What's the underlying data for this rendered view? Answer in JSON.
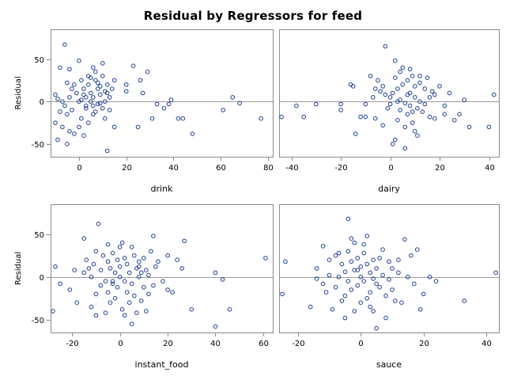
{
  "chart_data": {
    "type": "scatter",
    "title": "Residual by Regressors for feed",
    "ylabel": "Residual",
    "ylim": [
      -65,
      85
    ],
    "yticks": [
      -50,
      0,
      50
    ],
    "reference_line_y": 0,
    "marker": "open-circle",
    "marker_color": "#1f3f8f",
    "panels": [
      {
        "xlabel": "drink",
        "xlim": [
          -12,
          82
        ],
        "xticks": [
          0,
          20,
          40,
          60,
          80
        ],
        "points": [
          [
            -6,
            67
          ],
          [
            -8,
            40
          ],
          [
            -4,
            38
          ],
          [
            -5,
            22
          ],
          [
            -2,
            20
          ],
          [
            -10,
            8
          ],
          [
            -9,
            3
          ],
          [
            -7,
            0
          ],
          [
            -6,
            -5
          ],
          [
            -8,
            -12
          ],
          [
            -5,
            -15
          ],
          [
            -10,
            -25
          ],
          [
            -7,
            -30
          ],
          [
            -4,
            -35
          ],
          [
            -9,
            -45
          ],
          [
            -5,
            -50
          ],
          [
            -2,
            -38
          ],
          [
            -3,
            -10
          ],
          [
            -4,
            5
          ],
          [
            -1,
            10
          ],
          [
            0,
            48
          ],
          [
            1,
            25
          ],
          [
            2,
            15
          ],
          [
            0,
            0
          ],
          [
            1,
            -20
          ],
          [
            2,
            -40
          ],
          [
            3,
            5
          ],
          [
            3,
            -8
          ],
          [
            4,
            30
          ],
          [
            4,
            20
          ],
          [
            5,
            10
          ],
          [
            5,
            0
          ],
          [
            6,
            -5
          ],
          [
            6,
            -15
          ],
          [
            7,
            35
          ],
          [
            7,
            25
          ],
          [
            8,
            22
          ],
          [
            8,
            15
          ],
          [
            9,
            8
          ],
          [
            9,
            -2
          ],
          [
            10,
            45
          ],
          [
            10,
            30
          ],
          [
            10,
            -8
          ],
          [
            11,
            -20
          ],
          [
            11,
            0
          ],
          [
            12,
            20
          ],
          [
            12,
            10
          ],
          [
            12,
            -58
          ],
          [
            13,
            5
          ],
          [
            13,
            -10
          ],
          [
            14,
            15
          ],
          [
            15,
            25
          ],
          [
            15,
            -30
          ],
          [
            3,
            -5
          ],
          [
            2,
            8
          ],
          [
            6,
            5
          ],
          [
            8,
            -3
          ],
          [
            7,
            -12
          ],
          [
            5,
            28
          ],
          [
            4,
            -25
          ],
          [
            9,
            18
          ],
          [
            -3,
            15
          ],
          [
            0,
            -30
          ],
          [
            1,
            2
          ],
          [
            11,
            12
          ],
          [
            6,
            40
          ],
          [
            20,
            12
          ],
          [
            20,
            20
          ],
          [
            23,
            42
          ],
          [
            25,
            -30
          ],
          [
            26,
            25
          ],
          [
            27,
            10
          ],
          [
            29,
            35
          ],
          [
            31,
            -20
          ],
          [
            33,
            -3
          ],
          [
            36,
            -8
          ],
          [
            38,
            -3
          ],
          [
            39,
            2
          ],
          [
            42,
            -20
          ],
          [
            44,
            -20
          ],
          [
            48,
            -38
          ],
          [
            61,
            -10
          ],
          [
            65,
            5
          ],
          [
            68,
            -2
          ],
          [
            77,
            -20
          ]
        ]
      },
      {
        "xlabel": "dairy",
        "xlim": [
          -45,
          44
        ],
        "xticks": [
          -40,
          -20,
          0,
          20,
          40
        ],
        "points": [
          [
            -44,
            -18
          ],
          [
            -38,
            -5
          ],
          [
            -35,
            -18
          ],
          [
            -30,
            -3
          ],
          [
            -20,
            -3
          ],
          [
            -20,
            -10
          ],
          [
            -16,
            20
          ],
          [
            -15,
            18
          ],
          [
            -14,
            -38
          ],
          [
            -12,
            -18
          ],
          [
            -10,
            -18
          ],
          [
            -10,
            -3
          ],
          [
            -8,
            30
          ],
          [
            -7,
            5
          ],
          [
            -6,
            -20
          ],
          [
            -5,
            25
          ],
          [
            -4,
            12
          ],
          [
            -3,
            18
          ],
          [
            -2,
            8
          ],
          [
            -1,
            -8
          ],
          [
            0,
            -3
          ],
          [
            0,
            5
          ],
          [
            1,
            10
          ],
          [
            2,
            48
          ],
          [
            2,
            28
          ],
          [
            2,
            -45
          ],
          [
            3,
            15
          ],
          [
            3,
            -22
          ],
          [
            4,
            2
          ],
          [
            4,
            -10
          ],
          [
            5,
            40
          ],
          [
            5,
            20
          ],
          [
            6,
            -2
          ],
          [
            6,
            -30
          ],
          [
            7,
            25
          ],
          [
            7,
            -15
          ],
          [
            8,
            10
          ],
          [
            8,
            -5
          ],
          [
            9,
            30
          ],
          [
            9,
            -25
          ],
          [
            10,
            18
          ],
          [
            10,
            5
          ],
          [
            11,
            -8
          ],
          [
            11,
            -40
          ],
          [
            12,
            22
          ],
          [
            12,
            0
          ],
          [
            13,
            -12
          ],
          [
            14,
            15
          ],
          [
            15,
            28
          ],
          [
            16,
            -18
          ],
          [
            17,
            12
          ],
          [
            18,
            -20
          ],
          [
            20,
            18
          ],
          [
            22,
            -5
          ],
          [
            24,
            10
          ],
          [
            26,
            -22
          ],
          [
            28,
            -15
          ],
          [
            30,
            2
          ],
          [
            32,
            -30
          ],
          [
            -2,
            65
          ],
          [
            1,
            -50
          ],
          [
            6,
            -55
          ],
          [
            4,
            35
          ],
          [
            -6,
            15
          ],
          [
            8,
            38
          ],
          [
            10,
            -35
          ],
          [
            3,
            0
          ],
          [
            7,
            8
          ],
          [
            9,
            -12
          ],
          [
            -3,
            -28
          ],
          [
            14,
            -3
          ],
          [
            12,
            30
          ],
          [
            16,
            5
          ],
          [
            18,
            8
          ],
          [
            22,
            -15
          ],
          [
            40,
            -30
          ],
          [
            42,
            8
          ]
        ]
      },
      {
        "xlabel": "instant_food",
        "xlim": [
          -29,
          64
        ],
        "xticks": [
          -20,
          0,
          20,
          40,
          60
        ],
        "points": [
          [
            -28,
            -40
          ],
          [
            -27,
            12
          ],
          [
            -25,
            -8
          ],
          [
            -21,
            -15
          ],
          [
            -19,
            8
          ],
          [
            -18,
            -30
          ],
          [
            -15,
            5
          ],
          [
            -14,
            20
          ],
          [
            -13,
            10
          ],
          [
            -12,
            0
          ],
          [
            -12,
            -35
          ],
          [
            -11,
            15
          ],
          [
            -10,
            30
          ],
          [
            -10,
            -20
          ],
          [
            -9,
            62
          ],
          [
            -8,
            8
          ],
          [
            -8,
            -10
          ],
          [
            -7,
            25
          ],
          [
            -6,
            -5
          ],
          [
            -6,
            -42
          ],
          [
            -5,
            18
          ],
          [
            -5,
            -18
          ],
          [
            -4,
            10
          ],
          [
            -4,
            -30
          ],
          [
            -3,
            28
          ],
          [
            -3,
            -8
          ],
          [
            -2,
            5
          ],
          [
            -2,
            -25
          ],
          [
            -1,
            20
          ],
          [
            -1,
            -12
          ],
          [
            0,
            12
          ],
          [
            0,
            0
          ],
          [
            1,
            40
          ],
          [
            1,
            -38
          ],
          [
            2,
            22
          ],
          [
            2,
            -5
          ],
          [
            3,
            15
          ],
          [
            3,
            -18
          ],
          [
            4,
            5
          ],
          [
            4,
            -30
          ],
          [
            5,
            35
          ],
          [
            5,
            -8
          ],
          [
            6,
            25
          ],
          [
            6,
            -22
          ],
          [
            7,
            10
          ],
          [
            7,
            -42
          ],
          [
            8,
            18
          ],
          [
            8,
            0
          ],
          [
            9,
            5
          ],
          [
            9,
            -28
          ],
          [
            10,
            22
          ],
          [
            10,
            -12
          ],
          [
            11,
            8
          ],
          [
            11,
            -40
          ],
          [
            12,
            2
          ],
          [
            13,
            30
          ],
          [
            14,
            -10
          ],
          [
            15,
            12
          ],
          [
            16,
            18
          ],
          [
            18,
            -5
          ],
          [
            20,
            25
          ],
          [
            22,
            -18
          ],
          [
            24,
            20
          ],
          [
            26,
            10
          ],
          [
            27,
            42
          ],
          [
            30,
            -38
          ],
          [
            40,
            5
          ],
          [
            40,
            -58
          ],
          [
            43,
            -3
          ],
          [
            46,
            -38
          ],
          [
            61,
            22
          ],
          [
            -15,
            45
          ],
          [
            -10,
            -45
          ],
          [
            5,
            -55
          ],
          [
            14,
            48
          ],
          [
            0,
            35
          ],
          [
            2,
            -45
          ],
          [
            -5,
            38
          ],
          [
            8,
            12
          ],
          [
            -3,
            -5
          ],
          [
            12,
            -20
          ],
          [
            20,
            -15
          ]
        ]
      },
      {
        "xlabel": "sauce",
        "xlim": [
          -26,
          44
        ],
        "xticks": [
          -20,
          0,
          20,
          40
        ],
        "points": [
          [
            -25,
            -20
          ],
          [
            -24,
            18
          ],
          [
            -16,
            -35
          ],
          [
            -14,
            10
          ],
          [
            -14,
            -2
          ],
          [
            -12,
            36
          ],
          [
            -12,
            -8
          ],
          [
            -11,
            -18
          ],
          [
            -10,
            20
          ],
          [
            -10,
            2
          ],
          [
            -9,
            -38
          ],
          [
            -8,
            -12
          ],
          [
            -7,
            28
          ],
          [
            -7,
            0
          ],
          [
            -6,
            -28
          ],
          [
            -6,
            15
          ],
          [
            -5,
            6
          ],
          [
            -5,
            -22
          ],
          [
            -4,
            30
          ],
          [
            -4,
            -5
          ],
          [
            -3,
            18
          ],
          [
            -3,
            -15
          ],
          [
            -2,
            40
          ],
          [
            -2,
            8
          ],
          [
            -2,
            -40
          ],
          [
            -1,
            22
          ],
          [
            -1,
            -10
          ],
          [
            0,
            12
          ],
          [
            0,
            0
          ],
          [
            0,
            -30
          ],
          [
            1,
            28
          ],
          [
            1,
            -5
          ],
          [
            2,
            48
          ],
          [
            2,
            15
          ],
          [
            2,
            -25
          ],
          [
            3,
            5
          ],
          [
            3,
            -18
          ],
          [
            4,
            20
          ],
          [
            4,
            -2
          ],
          [
            4,
            -40
          ],
          [
            5,
            10
          ],
          [
            5,
            -8
          ],
          [
            6,
            -12
          ],
          [
            7,
            32
          ],
          [
            7,
            2
          ],
          [
            8,
            -22
          ],
          [
            8,
            -48
          ],
          [
            9,
            18
          ],
          [
            9,
            -3
          ],
          [
            10,
            10
          ],
          [
            10,
            -15
          ],
          [
            11,
            -28
          ],
          [
            12,
            5
          ],
          [
            13,
            -30
          ],
          [
            14,
            44
          ],
          [
            15,
            0
          ],
          [
            16,
            25
          ],
          [
            17,
            -8
          ],
          [
            18,
            32
          ],
          [
            19,
            -38
          ],
          [
            20,
            -20
          ],
          [
            22,
            0
          ],
          [
            24,
            -5
          ],
          [
            33,
            -28
          ],
          [
            43,
            5
          ],
          [
            -4,
            68
          ],
          [
            5,
            -60
          ],
          [
            -3,
            45
          ],
          [
            -8,
            25
          ],
          [
            1,
            38
          ],
          [
            -5,
            -48
          ],
          [
            6,
            22
          ],
          [
            3,
            -35
          ],
          [
            -1,
            8
          ],
          [
            12,
            20
          ]
        ]
      }
    ]
  }
}
